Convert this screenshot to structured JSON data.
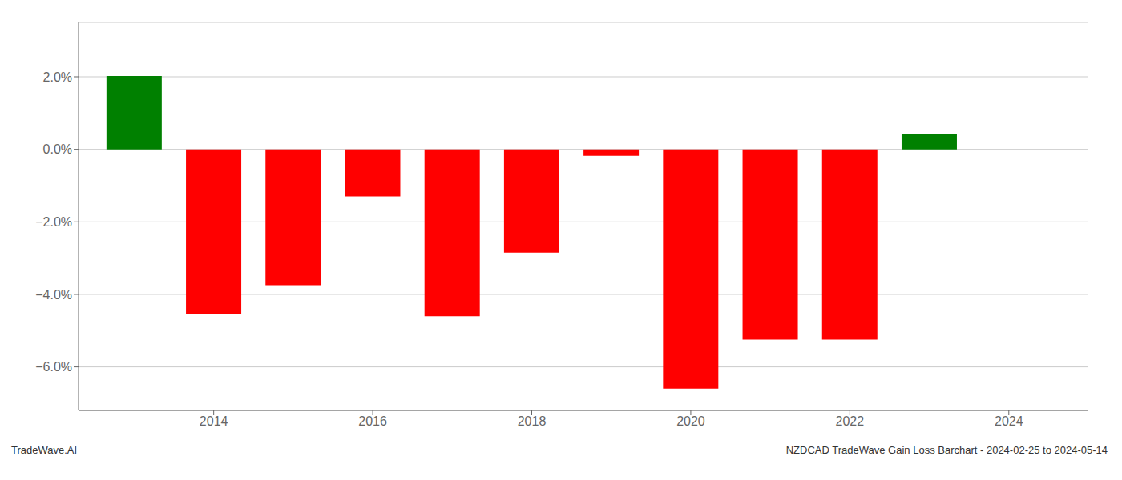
{
  "chart_data": {
    "type": "bar",
    "x": [
      2013,
      2014,
      2015,
      2016,
      2017,
      2018,
      2019,
      2020,
      2021,
      2022,
      2023
    ],
    "values": [
      2.02,
      -4.55,
      -3.75,
      -1.3,
      -4.6,
      -2.85,
      -0.18,
      -6.6,
      -5.25,
      -5.25,
      0.42
    ],
    "colors": [
      "#008000",
      "#ff0000",
      "#ff0000",
      "#ff0000",
      "#ff0000",
      "#ff0000",
      "#ff0000",
      "#ff0000",
      "#ff0000",
      "#ff0000",
      "#008000"
    ],
    "xlim": [
      2012.3,
      2025.0
    ],
    "xticks": [
      2014,
      2016,
      2018,
      2020,
      2022,
      2024
    ],
    "ylim": [
      -7.2,
      3.5
    ],
    "yticks": [
      {
        "value": 2.0,
        "label": "2.0%"
      },
      {
        "value": 0.0,
        "label": "0.0%"
      },
      {
        "value": -2.0,
        "label": "−2.0%"
      },
      {
        "value": -4.0,
        "label": "−4.0%"
      },
      {
        "value": -6.0,
        "label": "−6.0%"
      }
    ],
    "grid": true,
    "annotations": [
      "TradeWave.AI",
      "NZDCAD TradeWave Gain Loss Barchart - 2024-02-25 to 2024-05-14"
    ]
  }
}
